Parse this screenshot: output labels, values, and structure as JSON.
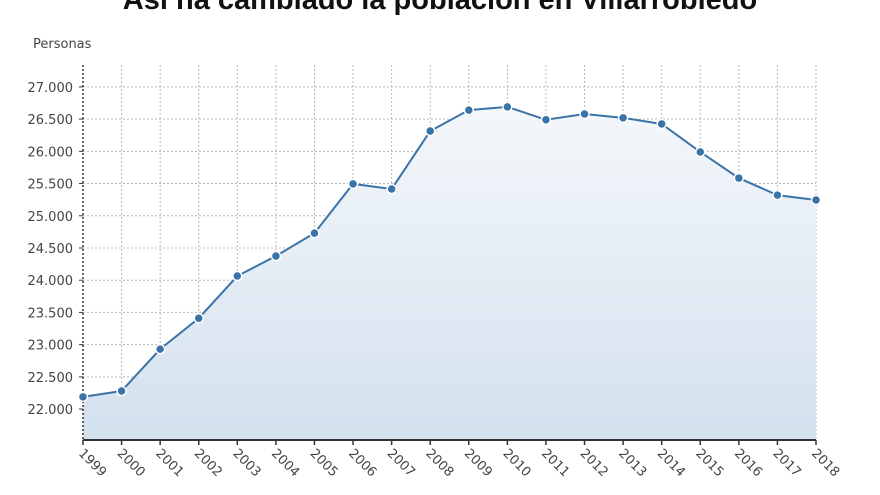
{
  "chart_data": {
    "type": "area",
    "title": "Así ha cambiado la población en Villarrobledo",
    "ylabel": "Personas",
    "xlabel": "",
    "x": [
      "1999",
      "2000",
      "2001",
      "2002",
      "2003",
      "2004",
      "2005",
      "2006",
      "2007",
      "2008",
      "2009",
      "2010",
      "2011",
      "2012",
      "2013",
      "2014",
      "2015",
      "2016",
      "2017",
      "2018"
    ],
    "values": [
      22190,
      22280,
      22930,
      23410,
      24065,
      24375,
      24730,
      25495,
      25415,
      26315,
      26640,
      26690,
      26490,
      26580,
      26520,
      26425,
      25990,
      25585,
      25320,
      25245
    ],
    "yticks": [
      22000,
      22500,
      23000,
      23500,
      24000,
      24500,
      25000,
      25500,
      26000,
      26500,
      27000
    ],
    "ytick_labels": [
      "22.000",
      "22.500",
      "23.000",
      "23.500",
      "24.000",
      "24.500",
      "25.000",
      "25.500",
      "26.000",
      "26.500",
      "27.000"
    ],
    "ylim": [
      21520,
      27340
    ],
    "grid": true,
    "line_color": "#3a73a8",
    "fill_top_color": "#f4f7fb",
    "fill_bottom_color": "#d3e1ee"
  }
}
